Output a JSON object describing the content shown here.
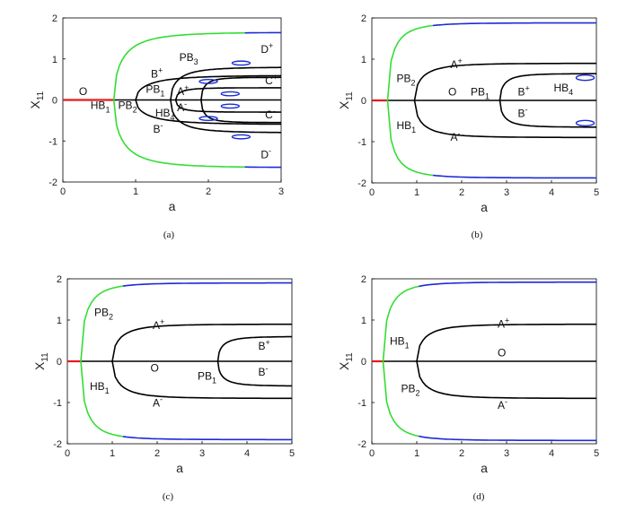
{
  "colors": {
    "stable": "#000000",
    "equilibrium_o": "#e41a1c",
    "periodic_green": "#33dd33",
    "periodic_blue": "#1a2bd6",
    "axis": "#000000"
  },
  "chart_data": [
    {
      "caption": "(a)",
      "type": "line",
      "xlabel": "a",
      "ylabel": "X",
      "ylabel_sub": "11",
      "xlim": [
        0,
        3
      ],
      "ylim": [
        -2,
        2
      ],
      "xticks": [
        0,
        1,
        2,
        3
      ],
      "yticks": [
        -2,
        -1,
        0,
        1,
        2
      ],
      "xtick_labels": [
        "0",
        "1",
        "2",
        "3"
      ],
      "ytick_labels": [
        "-2",
        "-1",
        "0",
        "1",
        "2"
      ],
      "hb1": 0.7,
      "pb2": 1.0,
      "pb1": 1.48,
      "pb4": 1.55,
      "pb3": 1.9,
      "curve_A_amp": 0.6,
      "curve_B_amp": 0.8,
      "curve_C_amp": 0.85,
      "green_amp": 1.65,
      "blue_start": 2.5,
      "labels": [
        {
          "text": "O",
          "sub": "",
          "sup": "",
          "x": 0.22,
          "y": 0.12
        },
        {
          "text": "HB",
          "sub": "1",
          "sup": "",
          "x": 0.38,
          "y": -0.22
        },
        {
          "text": "PB",
          "sub": "2",
          "sup": "",
          "x": 0.76,
          "y": -0.22
        },
        {
          "text": "PB",
          "sub": "1",
          "sup": "",
          "x": 1.14,
          "y": 0.18
        },
        {
          "text": "PB",
          "sub": "3",
          "sup": "",
          "x": 1.6,
          "y": 0.95
        },
        {
          "text": "HB",
          "sub": "4",
          "sup": "",
          "x": 1.27,
          "y": -0.4
        },
        {
          "text": "A",
          "sub": "",
          "sup": "+",
          "x": 1.57,
          "y": 0.12
        },
        {
          "text": "A",
          "sub": "",
          "sup": "-",
          "x": 1.57,
          "y": -0.27
        },
        {
          "text": "B",
          "sub": "",
          "sup": "+",
          "x": 1.21,
          "y": 0.55
        },
        {
          "text": "B",
          "sub": "",
          "sup": "-",
          "x": 1.24,
          "y": -0.8
        },
        {
          "text": "C",
          "sub": "",
          "sup": "+",
          "x": 2.78,
          "y": 0.38
        },
        {
          "text": "C",
          "sub": "",
          "sup": "-",
          "x": 2.78,
          "y": -0.45
        },
        {
          "text": "D",
          "sub": "",
          "sup": "+",
          "x": 2.72,
          "y": 1.15
        },
        {
          "text": "D",
          "sub": "",
          "sup": "-",
          "x": 2.72,
          "y": -1.42
        }
      ]
    },
    {
      "caption": "(b)",
      "type": "line",
      "xlabel": "a",
      "ylabel": "X",
      "ylabel_sub": "11",
      "xlim": [
        0,
        5
      ],
      "ylim": [
        -2,
        2
      ],
      "xticks": [
        0,
        1,
        2,
        3,
        4,
        5
      ],
      "yticks": [
        -2,
        -1,
        0,
        1,
        2
      ],
      "xtick_labels": [
        "0",
        "1",
        "2",
        "3",
        "4",
        "5"
      ],
      "ytick_labels": [
        "-2",
        "-1",
        "0",
        "1",
        "2"
      ],
      "hb1": 0.35,
      "pb2": 0.95,
      "pb1": 2.85,
      "curve_A_amp": 0.9,
      "curve_B_amp": 0.65,
      "green_amp": 1.88,
      "blue_start": 1.3,
      "labels": [
        {
          "text": "PB",
          "sub": "2",
          "sup": "",
          "x": 0.55,
          "y": 0.45
        },
        {
          "text": "HB",
          "sub": "1",
          "sup": "",
          "x": 0.55,
          "y": -0.7
        },
        {
          "text": "A",
          "sub": "",
          "sup": "+",
          "x": 1.75,
          "y": 0.78
        },
        {
          "text": "A",
          "sub": "",
          "sup": "-",
          "x": 1.75,
          "y": -0.98
        },
        {
          "text": "O",
          "sub": "",
          "sup": "",
          "x": 1.7,
          "y": 0.12
        },
        {
          "text": "PB",
          "sub": "1",
          "sup": "",
          "x": 2.2,
          "y": 0.12
        },
        {
          "text": "B",
          "sub": "",
          "sup": "+",
          "x": 3.25,
          "y": 0.12
        },
        {
          "text": "B",
          "sub": "",
          "sup": "-",
          "x": 3.25,
          "y": -0.4
        },
        {
          "text": "HB",
          "sub": "4",
          "sup": "",
          "x": 4.05,
          "y": 0.22
        }
      ]
    },
    {
      "caption": "(c)",
      "type": "line",
      "xlabel": "a",
      "ylabel": "X",
      "ylabel_sub": "11",
      "xlim": [
        0,
        5
      ],
      "ylim": [
        -2,
        2
      ],
      "xticks": [
        0,
        1,
        2,
        3,
        4,
        5
      ],
      "yticks": [
        -2,
        -1,
        0,
        1,
        2
      ],
      "xtick_labels": [
        "0",
        "1",
        "2",
        "3",
        "4",
        "5"
      ],
      "ytick_labels": [
        "-2",
        "-1",
        "0",
        "1",
        "2"
      ],
      "hb1": 0.3,
      "pb2": 1.0,
      "pb1": 3.35,
      "curve_A_amp": 0.9,
      "curve_B_amp": 0.6,
      "green_amp": 1.9,
      "blue_start": 1.2,
      "labels": [
        {
          "text": "PB",
          "sub": "2",
          "sup": "",
          "x": 0.6,
          "y": 1.1
        },
        {
          "text": "HB",
          "sub": "1",
          "sup": "",
          "x": 0.5,
          "y": -0.7
        },
        {
          "text": "A",
          "sub": "",
          "sup": "+",
          "x": 1.9,
          "y": 0.78
        },
        {
          "text": "A",
          "sub": "",
          "sup": "-",
          "x": 1.9,
          "y": -1.1
        },
        {
          "text": "O",
          "sub": "",
          "sup": "",
          "x": 1.85,
          "y": -0.25
        },
        {
          "text": "PB",
          "sub": "1",
          "sup": "",
          "x": 2.9,
          "y": -0.45
        },
        {
          "text": "B",
          "sub": "",
          "sup": "+",
          "x": 4.25,
          "y": 0.28
        },
        {
          "text": "B",
          "sub": "",
          "sup": "-",
          "x": 4.25,
          "y": -0.35
        }
      ]
    },
    {
      "caption": "(d)",
      "type": "line",
      "xlabel": "a",
      "ylabel": "X",
      "ylabel_sub": "11",
      "xlim": [
        0,
        5
      ],
      "ylim": [
        -2,
        2
      ],
      "xticks": [
        0,
        1,
        2,
        3,
        4,
        5
      ],
      "yticks": [
        -2,
        -1,
        0,
        1,
        2
      ],
      "xtick_labels": [
        "0",
        "1",
        "2",
        "3",
        "4",
        "5"
      ],
      "ytick_labels": [
        "-2",
        "-1",
        "0",
        "1",
        "2"
      ],
      "hb1": 0.25,
      "pb2": 1.0,
      "curve_A_amp": 0.9,
      "green_amp": 1.92,
      "blue_start": 1.0,
      "labels": [
        {
          "text": "HB",
          "sub": "1",
          "sup": "",
          "x": 0.4,
          "y": 0.4
        },
        {
          "text": "PB",
          "sub": "2",
          "sup": "",
          "x": 0.65,
          "y": -0.75
        },
        {
          "text": "A",
          "sub": "",
          "sup": "+",
          "x": 2.8,
          "y": 0.82
        },
        {
          "text": "A",
          "sub": "",
          "sup": "-",
          "x": 2.8,
          "y": -1.15
        },
        {
          "text": "O",
          "sub": "",
          "sup": "",
          "x": 2.8,
          "y": 0.12
        }
      ]
    }
  ]
}
